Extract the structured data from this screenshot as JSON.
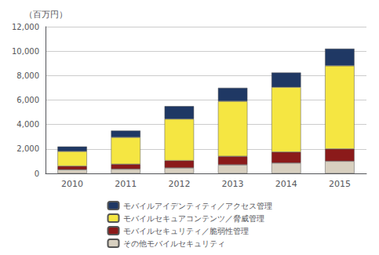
{
  "chart_data": {
    "type": "bar",
    "stacked": true,
    "categories": [
      "2010",
      "2011",
      "2012",
      "2013",
      "2014",
      "2015"
    ],
    "series": [
      {
        "name": "その他モバイルセキュリティ",
        "color": "#d8d0c0",
        "values": [
          300,
          350,
          450,
          700,
          850,
          1000
        ]
      },
      {
        "name": "モバイルセキュリティ／脆弱性管理",
        "color": "#8b1a1a",
        "values": [
          300,
          400,
          600,
          700,
          900,
          1000
        ]
      },
      {
        "name": "モバイルセキュアコンテンツ／脅威管理",
        "color": "#f5e642",
        "values": [
          1200,
          2200,
          3400,
          4500,
          5300,
          6800
        ]
      },
      {
        "name": "モバイルアイデンティティ／アクセス管理",
        "color": "#1f3864",
        "values": [
          400,
          550,
          1050,
          1100,
          1200,
          1400
        ]
      }
    ],
    "ylabel": "（百万円）",
    "ylim": [
      0,
      12000
    ],
    "yticks": [
      0,
      {
        "value": 2000,
        "label": "2,000"
      },
      {
        "value": 4000,
        "label": "4,000"
      },
      {
        "value": 6000,
        "label": "6,000"
      },
      {
        "value": 8000,
        "label": "8,000"
      },
      {
        "value": 10000,
        "label": "10,000"
      },
      {
        "value": 12000,
        "label": "12,000"
      }
    ],
    "grid": true,
    "legend": "bottom"
  }
}
